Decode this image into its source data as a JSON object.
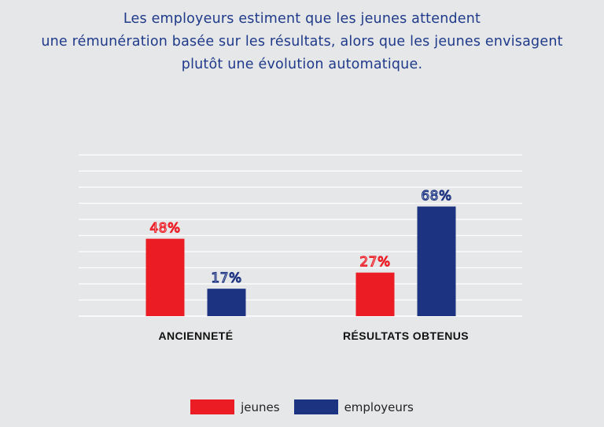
{
  "title_lines": [
    "Les employeurs estiment que les jeunes attendent",
    "une rémunération basée sur les résultats, alors que les jeunes envisagent",
    "plutôt une évolution automatique."
  ],
  "colors": {
    "jeunes": "#ec1c24",
    "employeurs": "#1c3382",
    "title": "#1f3a8a",
    "background": "#e6e7e8",
    "grid": "#ffffff"
  },
  "chart_data": {
    "type": "bar",
    "categories": [
      "ANCIENNETÉ",
      "RÉSULTATS OBTENUS"
    ],
    "series": [
      {
        "name": "jeunes",
        "values": [
          48,
          27
        ],
        "labels": [
          "48%",
          "27%"
        ]
      },
      {
        "name": "employeurs",
        "values": [
          17,
          68
        ],
        "labels": [
          "17%",
          "68%"
        ]
      }
    ],
    "ylim": [
      0,
      100
    ],
    "grid": true,
    "legend_position": "bottom"
  }
}
